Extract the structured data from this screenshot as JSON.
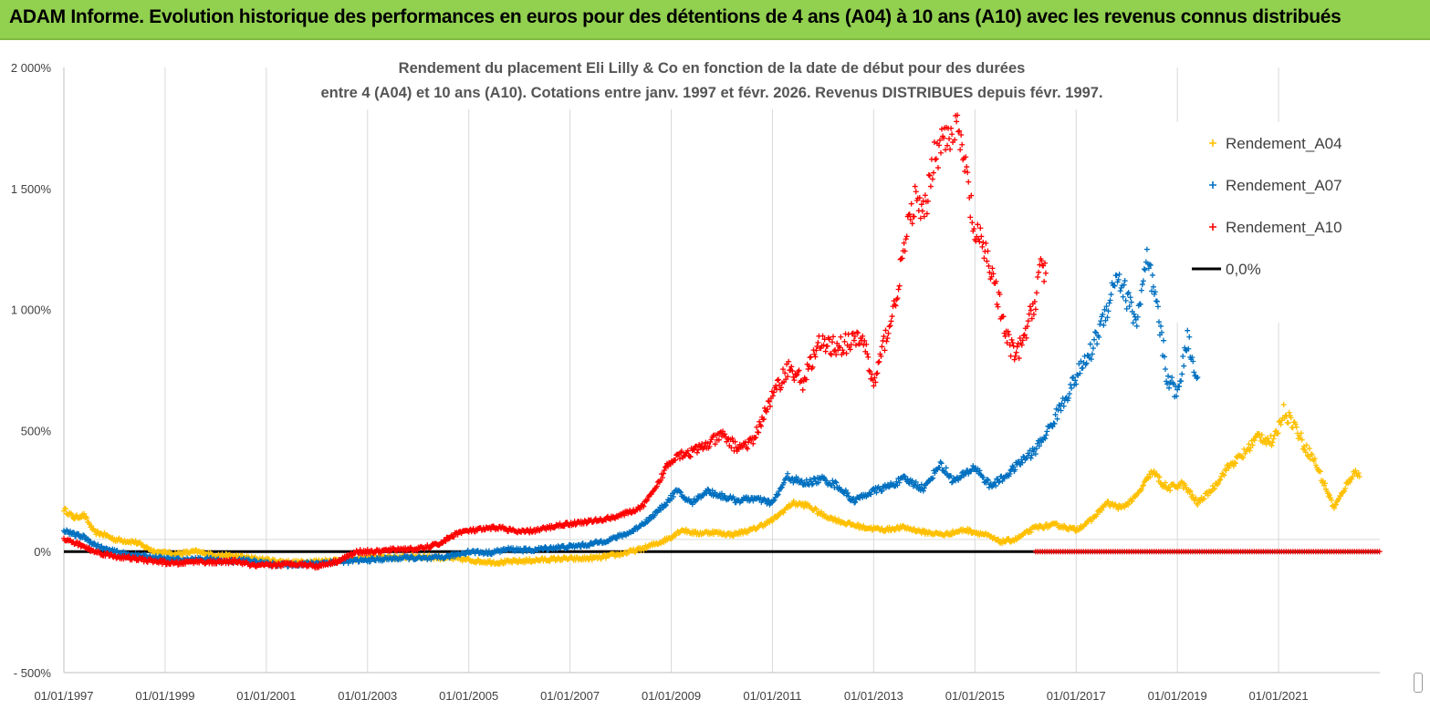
{
  "banner": {
    "title": "ADAM Informe. Evolution historique des performances en euros pour des détentions de 4 ans (A04) à 10 ans (A10) avec les revenus connus distribués",
    "background": "#92d050"
  },
  "chart_data": {
    "type": "scatter",
    "title_line1": "Rendement du placement Eli Lilly & Co en fonction de la date de début pour des durées",
    "title_line2": "entre 4 (A04) et 10 ans (A10). Cotations entre janv. 1997 et févr. 2026. Revenus DISTRIBUES depuis févr. 1997.",
    "xlabel": "",
    "ylabel": "",
    "ylim": [
      -500,
      2000
    ],
    "xlim": [
      1997.0,
      2023.0
    ],
    "y_ticks": [
      {
        "value": 2000,
        "label": "2 000%"
      },
      {
        "value": 1500,
        "label": "1 500%"
      },
      {
        "value": 1000,
        "label": "1 000%"
      },
      {
        "value": 500,
        "label": "500%"
      },
      {
        "value": 0,
        "label": "0%"
      },
      {
        "value": -500,
        "label": "- 500%"
      }
    ],
    "x_ticks": [
      {
        "value": 1997,
        "label": "01/01/1997"
      },
      {
        "value": 1999,
        "label": "01/01/1999"
      },
      {
        "value": 2001,
        "label": "01/01/2001"
      },
      {
        "value": 2003,
        "label": "01/01/2003"
      },
      {
        "value": 2005,
        "label": "01/01/2005"
      },
      {
        "value": 2007,
        "label": "01/01/2007"
      },
      {
        "value": 2009,
        "label": "01/01/2009"
      },
      {
        "value": 2011,
        "label": "01/01/2011"
      },
      {
        "value": 2013,
        "label": "01/01/2013"
      },
      {
        "value": 2015,
        "label": "01/01/2015"
      },
      {
        "value": 2017,
        "label": "01/01/2017"
      },
      {
        "value": 2019,
        "label": "01/01/2019"
      },
      {
        "value": 2021,
        "label": "01/01/2021"
      }
    ],
    "grid": "vertical",
    "legend_position": "right",
    "series": [
      {
        "name": "Rendement_A04",
        "color": "#ffc000",
        "marker": "plus",
        "points": [
          [
            1997.0,
            175
          ],
          [
            1997.2,
            140
          ],
          [
            1997.4,
            150
          ],
          [
            1997.6,
            80
          ],
          [
            1997.8,
            70
          ],
          [
            1998.0,
            50
          ],
          [
            1998.4,
            40
          ],
          [
            1998.8,
            0
          ],
          [
            1999.2,
            -10
          ],
          [
            1999.6,
            0
          ],
          [
            2000.0,
            -15
          ],
          [
            2000.4,
            -20
          ],
          [
            2000.8,
            -30
          ],
          [
            2001.2,
            -40
          ],
          [
            2001.6,
            -45
          ],
          [
            2002.0,
            -40
          ],
          [
            2002.4,
            -35
          ],
          [
            2002.8,
            -30
          ],
          [
            2003.2,
            -20
          ],
          [
            2003.6,
            -25
          ],
          [
            2004.0,
            -20
          ],
          [
            2004.4,
            -25
          ],
          [
            2004.8,
            -30
          ],
          [
            2005.2,
            -40
          ],
          [
            2005.6,
            -45
          ],
          [
            2006.0,
            -40
          ],
          [
            2006.4,
            -35
          ],
          [
            2006.8,
            -30
          ],
          [
            2007.2,
            -30
          ],
          [
            2007.6,
            -25
          ],
          [
            2008.0,
            -10
          ],
          [
            2008.4,
            10
          ],
          [
            2008.8,
            40
          ],
          [
            2009.0,
            60
          ],
          [
            2009.2,
            90
          ],
          [
            2009.5,
            75
          ],
          [
            2009.8,
            80
          ],
          [
            2010.2,
            70
          ],
          [
            2010.6,
            90
          ],
          [
            2011.0,
            130
          ],
          [
            2011.4,
            200
          ],
          [
            2011.7,
            190
          ],
          [
            2012.0,
            150
          ],
          [
            2012.4,
            120
          ],
          [
            2012.8,
            100
          ],
          [
            2013.2,
            90
          ],
          [
            2013.6,
            100
          ],
          [
            2014.0,
            80
          ],
          [
            2014.4,
            70
          ],
          [
            2014.8,
            90
          ],
          [
            2015.2,
            70
          ],
          [
            2015.5,
            40
          ],
          [
            2015.8,
            50
          ],
          [
            2016.2,
            100
          ],
          [
            2016.6,
            110
          ],
          [
            2017.0,
            90
          ],
          [
            2017.3,
            130
          ],
          [
            2017.6,
            200
          ],
          [
            2017.9,
            180
          ],
          [
            2018.2,
            230
          ],
          [
            2018.5,
            330
          ],
          [
            2018.8,
            260
          ],
          [
            2019.1,
            280
          ],
          [
            2019.4,
            200
          ],
          [
            2019.7,
            260
          ],
          [
            2020.0,
            350
          ],
          [
            2020.3,
            400
          ],
          [
            2020.6,
            480
          ],
          [
            2020.9,
            450
          ],
          [
            2021.1,
            580
          ],
          [
            2021.3,
            530
          ],
          [
            2021.5,
            440
          ],
          [
            2021.7,
            380
          ],
          [
            2021.9,
            280
          ],
          [
            2022.1,
            180
          ],
          [
            2022.3,
            260
          ],
          [
            2022.5,
            330
          ],
          [
            2022.6,
            310
          ]
        ]
      },
      {
        "name": "Rendement_A07",
        "color": "#0070c0",
        "marker": "plus",
        "points": [
          [
            1997.0,
            90
          ],
          [
            1997.2,
            70
          ],
          [
            1997.4,
            60
          ],
          [
            1997.6,
            30
          ],
          [
            1997.8,
            10
          ],
          [
            1998.2,
            -10
          ],
          [
            1998.6,
            -20
          ],
          [
            1999.0,
            -30
          ],
          [
            1999.4,
            -35
          ],
          [
            1999.8,
            -30
          ],
          [
            2000.2,
            -40
          ],
          [
            2000.6,
            -35
          ],
          [
            2001.0,
            -50
          ],
          [
            2001.4,
            -55
          ],
          [
            2001.8,
            -50
          ],
          [
            2002.2,
            -45
          ],
          [
            2002.6,
            -40
          ],
          [
            2003.0,
            -35
          ],
          [
            2003.4,
            -30
          ],
          [
            2003.8,
            -25
          ],
          [
            2004.2,
            -30
          ],
          [
            2004.6,
            -20
          ],
          [
            2005.0,
            0
          ],
          [
            2005.4,
            -5
          ],
          [
            2005.8,
            10
          ],
          [
            2006.2,
            5
          ],
          [
            2006.6,
            15
          ],
          [
            2007.0,
            20
          ],
          [
            2007.4,
            30
          ],
          [
            2007.8,
            50
          ],
          [
            2008.2,
            80
          ],
          [
            2008.6,
            140
          ],
          [
            2008.9,
            200
          ],
          [
            2009.1,
            250
          ],
          [
            2009.4,
            200
          ],
          [
            2009.7,
            250
          ],
          [
            2010.0,
            230
          ],
          [
            2010.3,
            210
          ],
          [
            2010.6,
            220
          ],
          [
            2011.0,
            200
          ],
          [
            2011.3,
            310
          ],
          [
            2011.6,
            280
          ],
          [
            2012.0,
            300
          ],
          [
            2012.3,
            270
          ],
          [
            2012.6,
            210
          ],
          [
            2013.0,
            250
          ],
          [
            2013.3,
            270
          ],
          [
            2013.6,
            300
          ],
          [
            2014.0,
            260
          ],
          [
            2014.3,
            360
          ],
          [
            2014.6,
            290
          ],
          [
            2015.0,
            350
          ],
          [
            2015.3,
            270
          ],
          [
            2015.6,
            310
          ],
          [
            2015.9,
            370
          ],
          [
            2016.2,
            420
          ],
          [
            2016.5,
            520
          ],
          [
            2016.7,
            600
          ],
          [
            2017.0,
            720
          ],
          [
            2017.3,
            830
          ],
          [
            2017.6,
            1000
          ],
          [
            2017.8,
            1150
          ],
          [
            2018.0,
            1050
          ],
          [
            2018.2,
            950
          ],
          [
            2018.4,
            1200
          ],
          [
            2018.6,
            1000
          ],
          [
            2018.8,
            720
          ],
          [
            2019.0,
            650
          ],
          [
            2019.2,
            880
          ],
          [
            2019.4,
            720
          ]
        ]
      },
      {
        "name": "Rendement_A10",
        "color": "#ff0000",
        "marker": "plus",
        "points": [
          [
            1997.0,
            50
          ],
          [
            1997.3,
            30
          ],
          [
            1997.6,
            0
          ],
          [
            1998.0,
            -20
          ],
          [
            1998.4,
            -30
          ],
          [
            1998.8,
            -40
          ],
          [
            1999.2,
            -50
          ],
          [
            1999.6,
            -40
          ],
          [
            2000.0,
            -45
          ],
          [
            2000.4,
            -40
          ],
          [
            2000.8,
            -60
          ],
          [
            2001.2,
            -55
          ],
          [
            2001.6,
            -50
          ],
          [
            2002.0,
            -60
          ],
          [
            2002.4,
            -40
          ],
          [
            2002.8,
            0
          ],
          [
            2003.2,
            0
          ],
          [
            2003.6,
            10
          ],
          [
            2004.0,
            10
          ],
          [
            2004.4,
            30
          ],
          [
            2004.8,
            80
          ],
          [
            2005.2,
            90
          ],
          [
            2005.6,
            100
          ],
          [
            2006.0,
            80
          ],
          [
            2006.4,
            90
          ],
          [
            2006.8,
            110
          ],
          [
            2007.2,
            120
          ],
          [
            2007.6,
            130
          ],
          [
            2008.0,
            150
          ],
          [
            2008.4,
            180
          ],
          [
            2008.7,
            260
          ],
          [
            2008.9,
            350
          ],
          [
            2009.1,
            400
          ],
          [
            2009.4,
            410
          ],
          [
            2009.7,
            440
          ],
          [
            2010.0,
            480
          ],
          [
            2010.3,
            430
          ],
          [
            2010.6,
            450
          ],
          [
            2010.9,
            600
          ],
          [
            2011.1,
            680
          ],
          [
            2011.3,
            760
          ],
          [
            2011.6,
            700
          ],
          [
            2011.9,
            850
          ],
          [
            2012.2,
            850
          ],
          [
            2012.5,
            860
          ],
          [
            2012.8,
            880
          ],
          [
            2013.0,
            680
          ],
          [
            2013.2,
            860
          ],
          [
            2013.4,
            1000
          ],
          [
            2013.6,
            1250
          ],
          [
            2013.8,
            1450
          ],
          [
            2014.0,
            1380
          ],
          [
            2014.2,
            1650
          ],
          [
            2014.4,
            1700
          ],
          [
            2014.6,
            1780
          ],
          [
            2014.8,
            1600
          ],
          [
            2015.0,
            1300
          ],
          [
            2015.2,
            1250
          ],
          [
            2015.4,
            1100
          ],
          [
            2015.6,
            900
          ],
          [
            2015.8,
            800
          ],
          [
            2016.0,
            900
          ],
          [
            2016.2,
            1050
          ],
          [
            2016.3,
            1200
          ],
          [
            2016.4,
            1150
          ]
        ]
      },
      {
        "name": "0,0%",
        "color": "#000000",
        "marker": "line",
        "points": [
          [
            1997.0,
            0
          ],
          [
            2023.0,
            0
          ]
        ]
      }
    ],
    "zero_return_tail": {
      "name": "Rendement_A10",
      "from": 2016.2,
      "to": 2023.0,
      "value": 0
    }
  }
}
